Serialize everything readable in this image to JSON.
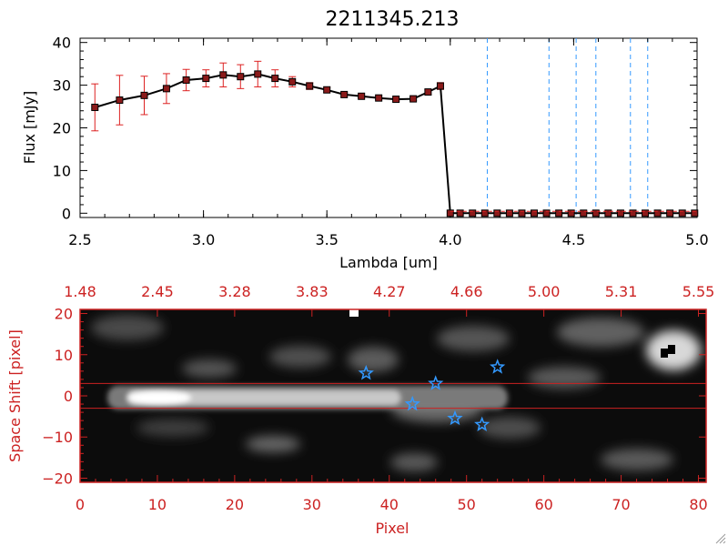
{
  "window_title": "2211345.213",
  "chart_data": [
    {
      "type": "line",
      "title": "2211345.213",
      "xlabel": "Lambda [um]",
      "ylabel": "Flux [mJy]",
      "xlim": [
        2.5,
        5.0
      ],
      "ylim": [
        -1,
        41
      ],
      "xticks": [
        2.5,
        3.0,
        3.5,
        4.0,
        4.5,
        5.0
      ],
      "xtick_labels": [
        "2.5",
        "3.0",
        "3.5",
        "4.0",
        "4.5",
        "5.0"
      ],
      "yticks": [
        0,
        10,
        20,
        30,
        40
      ],
      "ytick_labels": [
        "0",
        "10",
        "20",
        "30",
        "40"
      ],
      "line_color": "#000000",
      "marker_color": "#8b1a1a",
      "errorbar_color": "#dd2222",
      "vline_color": "#3399ff",
      "series": [
        {
          "x": [
            2.56,
            2.66,
            2.76,
            2.85,
            2.93,
            3.01,
            3.08,
            3.15,
            3.22,
            3.29,
            3.36,
            3.43,
            3.5,
            3.57,
            3.64,
            3.71,
            3.78,
            3.85,
            3.91,
            3.96,
            4.0,
            4.04,
            4.09,
            4.14,
            4.19,
            4.24,
            4.29,
            4.34,
            4.39,
            4.44,
            4.49,
            4.54,
            4.59,
            4.64,
            4.69,
            4.74,
            4.79,
            4.84,
            4.89,
            4.94,
            4.99
          ],
          "y": [
            24.8,
            26.5,
            27.6,
            29.2,
            31.2,
            31.6,
            32.4,
            32.0,
            32.6,
            31.6,
            30.8,
            29.8,
            28.9,
            27.8,
            27.4,
            27.0,
            26.7,
            26.8,
            28.4,
            29.8,
            0,
            0,
            0,
            0,
            0,
            0,
            0,
            0,
            0,
            0,
            0,
            0,
            0,
            0,
            0,
            0,
            0,
            0,
            0,
            0,
            0
          ],
          "yerr": [
            5.5,
            5.8,
            4.5,
            3.5,
            2.5,
            2.0,
            2.8,
            2.8,
            3.0,
            2.0,
            1.2,
            0.8,
            0.6,
            0.5,
            0.4,
            0.4,
            0.4,
            0.4,
            0.6,
            0.8,
            0,
            0,
            0,
            0,
            0,
            0,
            0,
            0,
            0,
            0,
            0,
            0,
            0,
            0,
            0,
            0,
            0,
            0,
            0,
            0,
            0
          ]
        }
      ],
      "vlines": [
        4.15,
        4.4,
        4.51,
        4.59,
        4.73,
        4.8
      ]
    },
    {
      "type": "heatmap",
      "xlabel": "Pixel",
      "ylabel": "Space Shift [pixel]",
      "xlim": [
        0,
        81
      ],
      "ylim": [
        -21,
        21
      ],
      "xticks": [
        0,
        10,
        20,
        30,
        40,
        50,
        60,
        70,
        80
      ],
      "xtick_labels": [
        "0",
        "10",
        "20",
        "30",
        "40",
        "50",
        "60",
        "70",
        "80"
      ],
      "yticks": [
        -20,
        -10,
        0,
        10,
        20
      ],
      "ytick_labels": [
        "−20",
        "−10",
        "0",
        "10",
        "20"
      ],
      "top_xticks": [
        0,
        10,
        20,
        30,
        40,
        50,
        60,
        70,
        80
      ],
      "top_xtick_labels": [
        "1.48",
        "2.45",
        "3.28",
        "3.83",
        "4.27",
        "4.66",
        "5.00",
        "5.31",
        "5.55"
      ],
      "axis_color": "#cc2222",
      "hlines": [
        3,
        -3
      ],
      "hline_color": "#cc2222",
      "star_color": "#3399ff",
      "stars": [
        {
          "x": 37,
          "y": 5.5
        },
        {
          "x": 43,
          "y": -2
        },
        {
          "x": 46,
          "y": 3
        },
        {
          "x": 48.5,
          "y": -5.5
        },
        {
          "x": 52,
          "y": -7
        },
        {
          "x": 54,
          "y": 7
        }
      ]
    }
  ]
}
